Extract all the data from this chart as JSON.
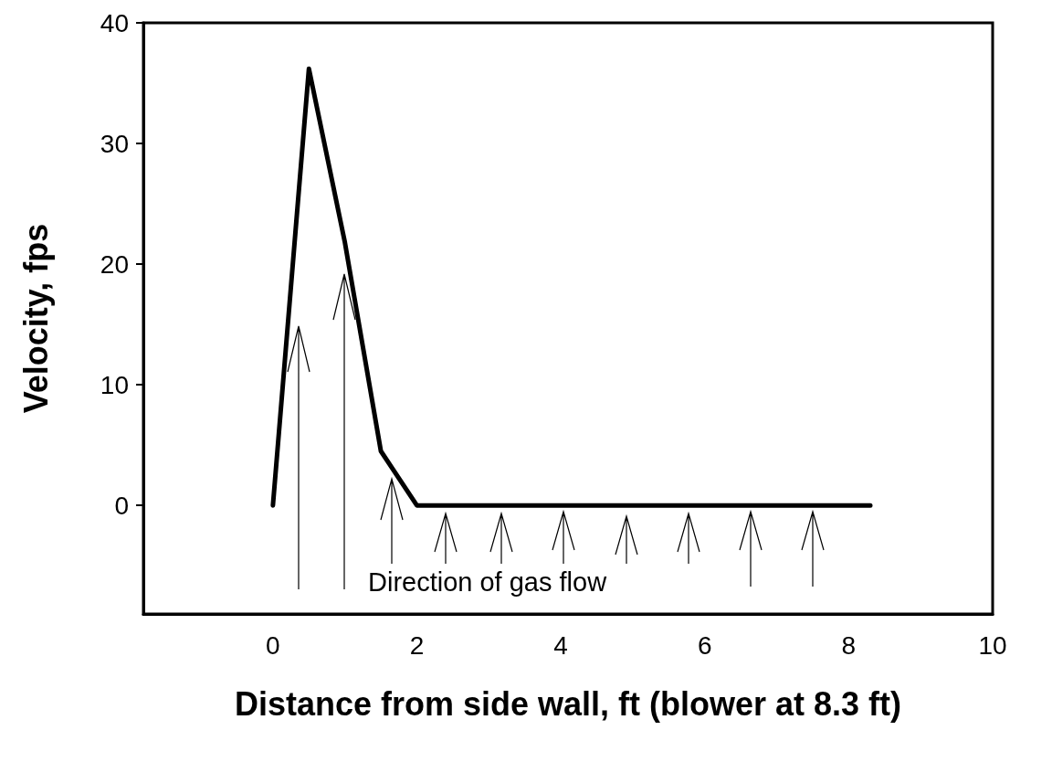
{
  "chart_data": {
    "type": "line",
    "xlabel": "Distance from side wall, ft (blower at 8.3 ft)",
    "ylabel": "Velocity, fps",
    "x": [
      0,
      0.5,
      1.0,
      1.5,
      2.0,
      8.3
    ],
    "series": [
      {
        "color": "#000000",
        "values": [
          0,
          36.2,
          21.8,
          4.5,
          0,
          0
        ]
      }
    ],
    "xlim": [
      -1.8,
      10
    ],
    "xticks": [
      0,
      2,
      4,
      6,
      8,
      10
    ],
    "ylim": [
      -9,
      40
    ],
    "yticks": [
      0,
      10,
      20,
      30,
      40
    ],
    "grid": false,
    "marker": "none",
    "line_style": "solid",
    "annotations": [
      "Direction of gas flow"
    ]
  }
}
